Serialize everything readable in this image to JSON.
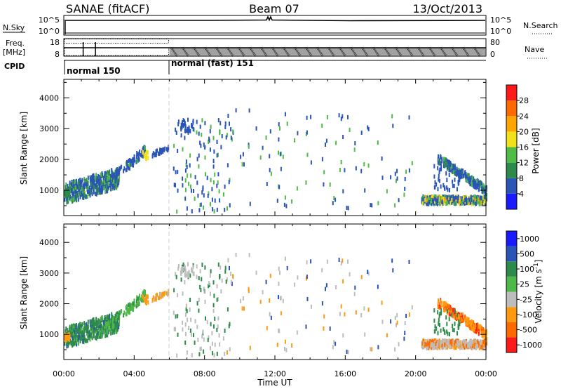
{
  "header": {
    "title": "SANAE (fitACF)",
    "beam": "Beam 07",
    "date": "13/Oct/2013"
  },
  "sky_panel": {
    "left_label": "N.Sky",
    "left_ticks": [
      "10^5",
      "10^0"
    ],
    "right_ticks": [
      "10^5",
      "10^0"
    ],
    "right_label": "N.Search"
  },
  "freq_panel": {
    "left_label_1": "Freq.",
    "left_label_2": "[MHz]",
    "left_ticks": [
      "18",
      "8"
    ],
    "right_ticks": [
      "80",
      "0"
    ],
    "right_label": "Nave"
  },
  "cpid": {
    "label": "CPID",
    "modes": [
      "normal 150",
      "normal (fast) 151"
    ],
    "change_hour": 6.0
  },
  "colors": {
    "power": [
      "#1a1aff",
      "#2a54b8",
      "#2e8a4a",
      "#50bb46",
      "#f2e01a",
      "#ffa500",
      "#ff6a00",
      "#ff1a1a"
    ],
    "velocity": [
      "#ff1a1a",
      "#ff6a00",
      "#ff9a10",
      "#bdbdbd",
      "#4eb848",
      "#2e8a4a",
      "#2a54b8",
      "#1a1aff"
    ]
  },
  "chart_data": [
    {
      "type": "heatmap",
      "name": "Power",
      "ylabel": "Slant Range [km]",
      "ylim": [
        180,
        4600
      ],
      "yticks": [
        1000,
        2000,
        3000,
        4000
      ],
      "xlim": [
        0,
        24
      ],
      "colorbar": {
        "label": "Power [dB]",
        "ticks": [
          "4",
          "8",
          "12",
          "16",
          "20",
          "24",
          "28"
        ]
      }
    },
    {
      "type": "heatmap",
      "name": "Velocity",
      "ylabel": "Slant Range [km]",
      "ylim": [
        180,
        4600
      ],
      "yticks": [
        1000,
        2000,
        3000,
        4000
      ],
      "xlim": [
        0,
        24
      ],
      "xlabel": "Time UT",
      "xticks": [
        "00:00",
        "04:00",
        "08:00",
        "12:00",
        "16:00",
        "20:00",
        "00:00"
      ],
      "colorbar": {
        "label": "Velocity [m s^-1]",
        "ticks": [
          "1000",
          "500",
          "100",
          "25",
          "-25",
          "-100",
          "-500",
          "-1000"
        ]
      }
    }
  ]
}
